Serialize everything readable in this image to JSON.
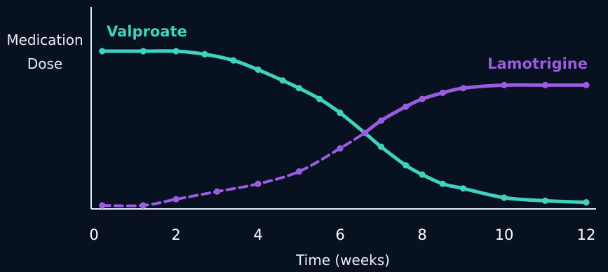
{
  "chart_data": {
    "type": "line",
    "title": "",
    "xlabel": "Time (weeks)",
    "ylabel_lines": [
      "Medication",
      "Dose"
    ],
    "xlim": [
      0,
      12.2
    ],
    "ylim": [
      0,
      100
    ],
    "x_ticks": [
      0,
      2,
      4,
      6,
      8,
      10,
      12
    ],
    "x_tick_labels": [
      "0",
      "2",
      "4",
      "6",
      "8",
      "10",
      "12"
    ],
    "grid": false,
    "legend": "inline labels",
    "series": [
      {
        "name": "Valproate",
        "color": "#3fd3bf",
        "style": "solid",
        "x": [
          0.2,
          1.2,
          2.0,
          2.7,
          3.4,
          4.0,
          4.6,
          5.0,
          5.5,
          6.0,
          6.6,
          7.0,
          7.6,
          8.0,
          8.5,
          9.0,
          10.0,
          11.0,
          12.0
        ],
        "y": [
          100,
          100,
          100,
          98,
          94,
          88,
          81,
          76,
          69,
          60,
          47,
          38,
          26,
          20,
          14,
          11,
          5,
          3,
          2
        ]
      },
      {
        "name": "Lamotrigine",
        "color": "#9b5ce0",
        "style": "dashed-then-solid",
        "solid_from_x": 6.6,
        "x": [
          0.2,
          1.2,
          2.0,
          3.0,
          4.0,
          5.0,
          6.0,
          6.6,
          7.0,
          7.6,
          8.0,
          8.5,
          9.0,
          10.0,
          11.0,
          12.0
        ],
        "y": [
          0,
          0,
          4,
          9,
          14,
          22,
          37,
          47,
          55,
          64,
          69,
          73,
          76,
          78,
          78,
          78
        ]
      }
    ]
  }
}
